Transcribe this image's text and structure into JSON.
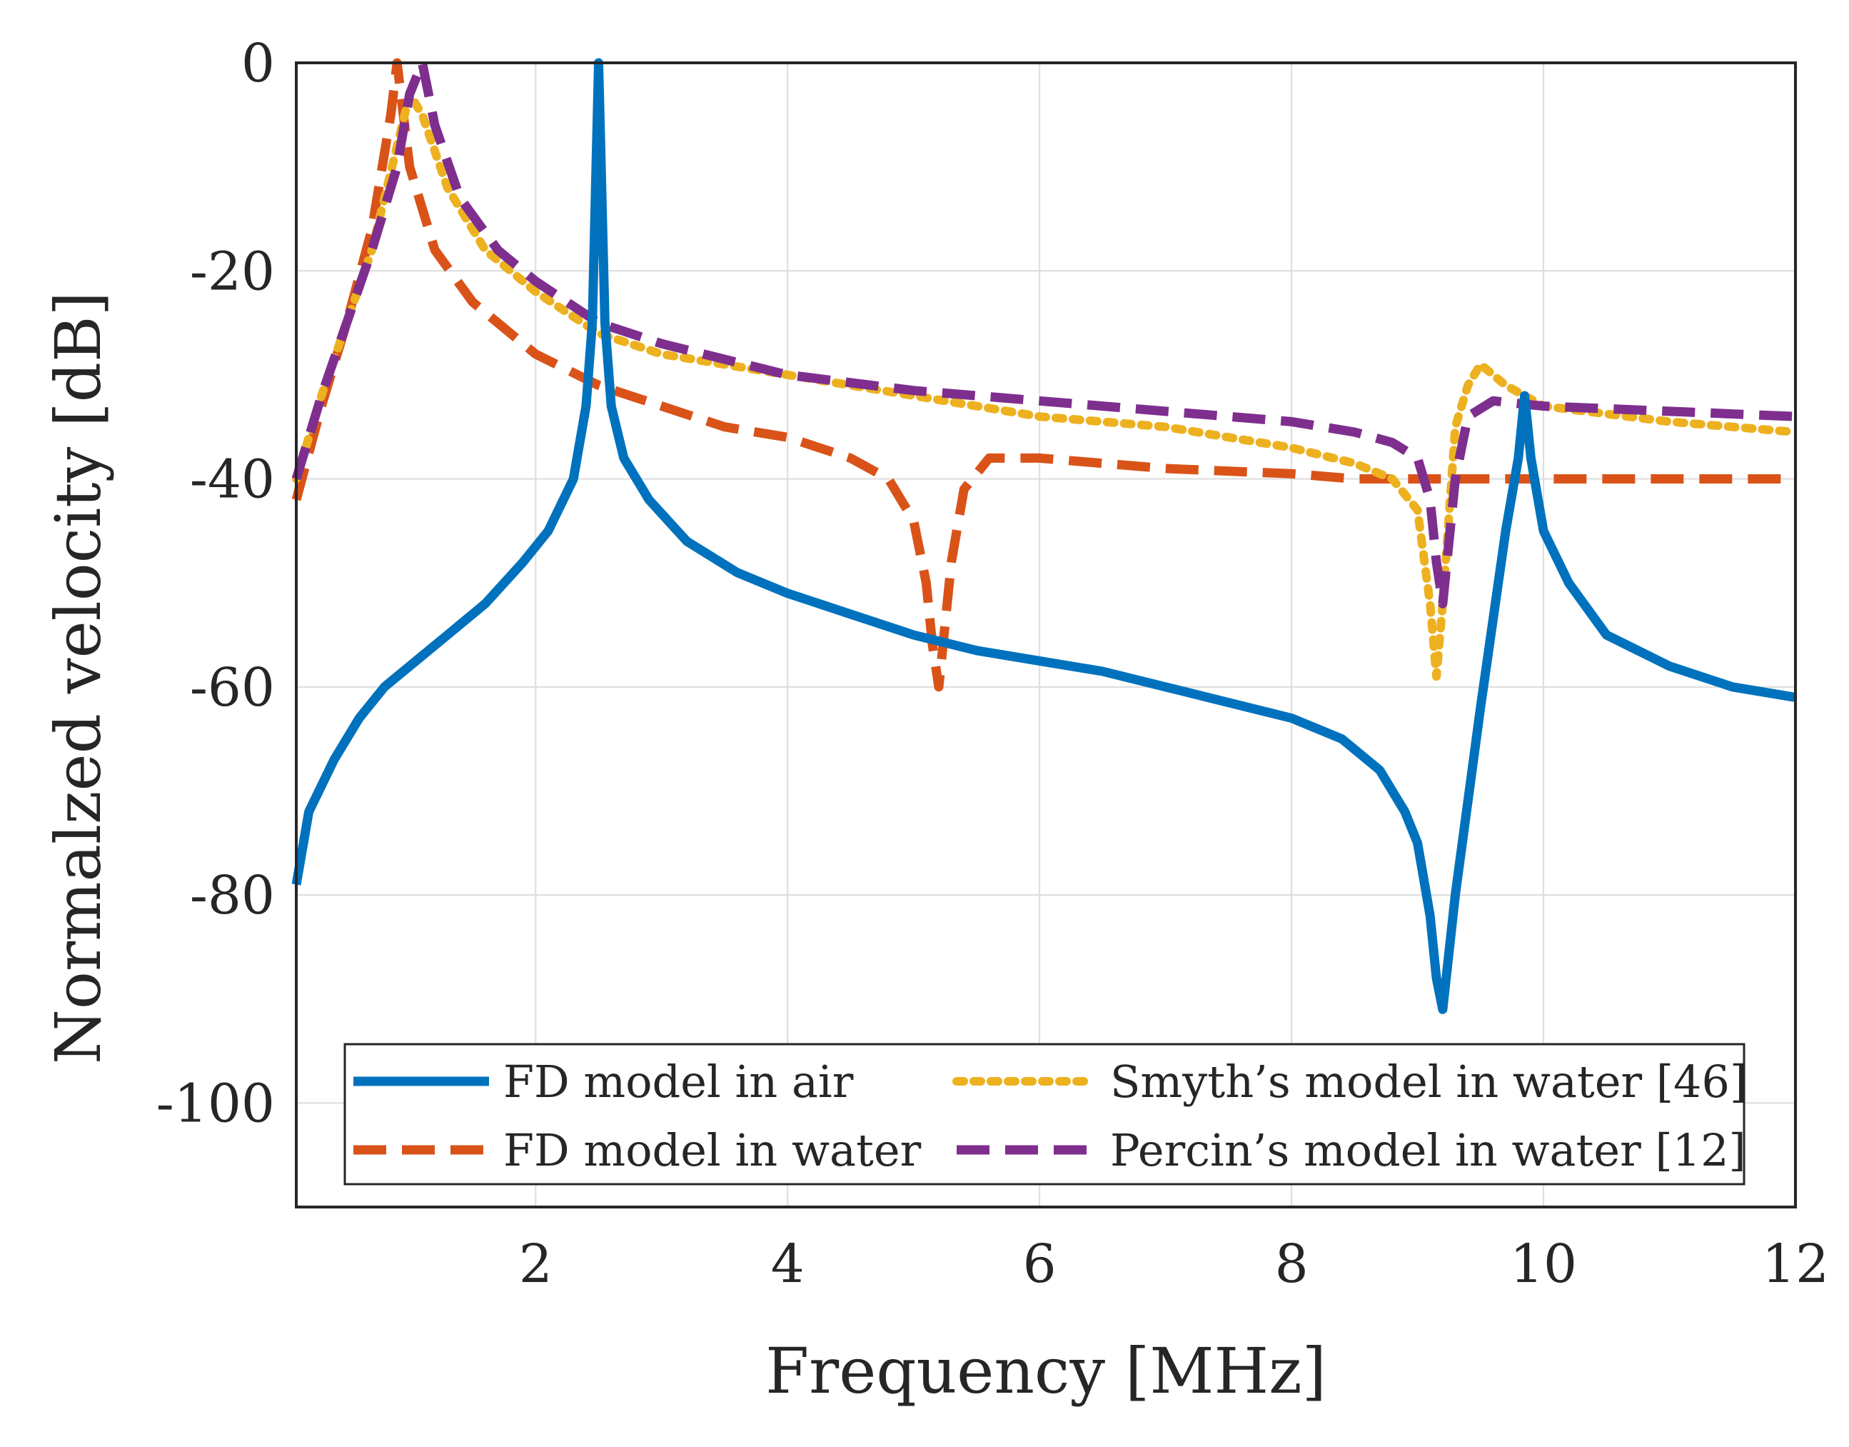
{
  "chart_data": {
    "type": "line",
    "title": "",
    "xlabel": "Frequency [MHz]",
    "ylabel": "Normalzed velocity [dB]",
    "xlim": [
      0.1,
      12
    ],
    "ylim": [
      -110,
      0
    ],
    "xticks": [
      2,
      4,
      6,
      8,
      10,
      12
    ],
    "xtick_labels": [
      "2",
      "4",
      "6",
      "8",
      "10",
      "12"
    ],
    "yticks": [
      0,
      -20,
      -40,
      -60,
      -80,
      -100
    ],
    "ytick_labels": [
      "0",
      "-20",
      "-40",
      "-60",
      "-80",
      "-100"
    ],
    "grid": true,
    "legend_position": "bottom",
    "series": [
      {
        "name": "FD model in air",
        "color": "#0072BD",
        "style": "solid",
        "x": [
          0.1,
          0.2,
          0.4,
          0.6,
          0.8,
          1.0,
          1.3,
          1.6,
          1.9,
          2.1,
          2.3,
          2.4,
          2.45,
          2.5,
          2.55,
          2.6,
          2.7,
          2.9,
          3.2,
          3.6,
          4.0,
          4.5,
          5.0,
          5.5,
          6.0,
          6.5,
          7.0,
          7.5,
          8.0,
          8.4,
          8.7,
          8.9,
          9.0,
          9.1,
          9.15,
          9.2,
          9.3,
          9.5,
          9.7,
          9.8,
          9.85,
          9.9,
          10.0,
          10.2,
          10.5,
          11.0,
          11.5,
          12.0
        ],
        "values": [
          -79,
          -72,
          -67,
          -63,
          -60,
          -58,
          -55,
          -52,
          -48,
          -45,
          -40,
          -33,
          -25,
          0,
          -25,
          -33,
          -38,
          -42,
          -46,
          -49,
          -51,
          -53,
          -55,
          -56.5,
          -57.5,
          -58.5,
          -60,
          -61.5,
          -63,
          -65,
          -68,
          -72,
          -75,
          -82,
          -88,
          -91,
          -80,
          -62,
          -45,
          -38,
          -32,
          -38,
          -45,
          -50,
          -55,
          -58,
          -60,
          -61
        ]
      },
      {
        "name": "FD model in water",
        "color": "#D95319",
        "style": "dashed",
        "x": [
          0.1,
          0.3,
          0.5,
          0.7,
          0.85,
          0.9,
          1.0,
          1.2,
          1.5,
          2.0,
          2.5,
          3.0,
          3.5,
          4.0,
          4.5,
          4.8,
          5.0,
          5.1,
          5.15,
          5.2,
          5.3,
          5.4,
          5.6,
          6.0,
          7.0,
          8.0,
          8.5,
          9.0,
          10.0,
          11.0,
          12.0
        ],
        "values": [
          -42,
          -33,
          -25,
          -16,
          -5,
          0,
          -10,
          -18,
          -23,
          -28,
          -31,
          -33,
          -35,
          -36,
          -38,
          -40,
          -44,
          -50,
          -56,
          -60,
          -48,
          -41,
          -38,
          -38,
          -39,
          -39.5,
          -40,
          -40,
          -40,
          -40,
          -40
        ]
      },
      {
        "name": "Smyth’s model in water [46]",
        "color": "#EDB120",
        "style": "dotted",
        "x": [
          0.1,
          0.3,
          0.5,
          0.7,
          0.9,
          1.0,
          1.1,
          1.3,
          1.6,
          2.0,
          2.5,
          3.0,
          4.0,
          5.0,
          6.0,
          7.0,
          8.0,
          8.5,
          8.8,
          9.0,
          9.1,
          9.15,
          9.2,
          9.3,
          9.4,
          9.5,
          9.7,
          10.0,
          11.0,
          12.0
        ],
        "values": [
          -40,
          -32,
          -25,
          -18,
          -8,
          -3,
          -5,
          -12,
          -18,
          -22,
          -26,
          -28,
          -30,
          -32,
          -34,
          -35,
          -37,
          -38.5,
          -40,
          -43,
          -52,
          -59,
          -52,
          -35,
          -31,
          -29,
          -31,
          -33,
          -34.5,
          -35.5
        ]
      },
      {
        "name": "Percin’s model in water [12]",
        "color": "#7E2F8E",
        "style": "dashed",
        "x": [
          0.1,
          0.3,
          0.5,
          0.7,
          0.9,
          1.0,
          1.1,
          1.2,
          1.4,
          1.7,
          2.0,
          2.5,
          3.0,
          4.0,
          5.0,
          6.0,
          7.0,
          8.0,
          8.5,
          8.8,
          9.0,
          9.1,
          9.15,
          9.2,
          9.3,
          9.4,
          9.6,
          10.0,
          11.0,
          12.0
        ],
        "values": [
          -40,
          -32,
          -25,
          -18,
          -10,
          -3,
          0,
          -6,
          -13,
          -18,
          -21,
          -25,
          -27,
          -30,
          -31.5,
          -32.5,
          -33.5,
          -34.5,
          -35.5,
          -36.5,
          -38,
          -42,
          -48,
          -52,
          -40,
          -34,
          -32.5,
          -33,
          -33.5,
          -34
        ]
      }
    ]
  }
}
